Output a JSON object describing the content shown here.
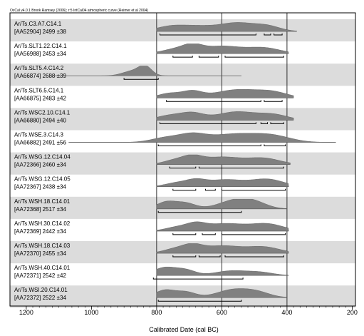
{
  "chart_data": {
    "type": "area",
    "header": "OxCal v4.0.1 Bronk Ramsey (2006); r:5 IntCal04 atmospheric curve (Reimer et al 2004)",
    "xlabel": "Calibrated Date (cal BC)",
    "xlim": [
      1250,
      190
    ],
    "x_ticks": [
      1200,
      1000,
      800,
      600,
      400,
      200
    ],
    "gridlines": [
      800,
      600,
      400
    ],
    "samples": [
      {
        "name": "Ar/Ts.C3.A7.C14.1",
        "lab": "[AA52904] 2499 ±38",
        "peaks": [
          [
            760,
            0.45,
            45
          ],
          [
            670,
            0.55,
            60
          ],
          [
            550,
            0.85,
            50
          ],
          [
            460,
            0.55,
            40
          ]
        ],
        "tails": [
          650,
          370
        ],
        "ranges": [
          [
            790,
            495
          ],
          [
            470,
            450
          ],
          [
            440,
            415
          ]
        ]
      },
      {
        "name": "Ar/Ts.SLT1.22.C14.1",
        "lab": "[AA56988] 2453 ±34",
        "peaks": [
          [
            745,
            0.45,
            40
          ],
          [
            690,
            0.7,
            30
          ],
          [
            600,
            0.8,
            60
          ],
          [
            470,
            0.6,
            50
          ]
        ],
        "tails": [
          650,
          395
        ],
        "ranges": [
          [
            750,
            690
          ],
          [
            670,
            610
          ],
          [
            590,
            410
          ]
        ]
      },
      {
        "name": "Ar/Ts.SLT5.4.C14.2",
        "lab": "[AA66874] 2688 ±39",
        "peaks": [
          [
            875,
            0.5,
            30
          ],
          [
            835,
            0.95,
            20
          ]
        ],
        "tails": [
          980,
          540
        ],
        "ranges": [
          [
            900,
            795
          ]
        ]
      },
      {
        "name": "Ar/Ts.SLT6.5.C14.1",
        "lab": "[AA66875] 2483 ±42",
        "peaks": [
          [
            760,
            0.5,
            35
          ],
          [
            690,
            0.65,
            30
          ],
          [
            550,
            0.9,
            70
          ],
          [
            440,
            0.5,
            45
          ]
        ],
        "tails": [
          650,
          380
        ],
        "ranges": [
          [
            770,
            480
          ],
          [
            470,
            415
          ]
        ]
      },
      {
        "name": "Ar/Ts.WSC2.10.C14.1",
        "lab": "[AA66880] 2494 ±40",
        "peaks": [
          [
            760,
            0.5,
            40
          ],
          [
            690,
            0.7,
            35
          ],
          [
            555,
            0.9,
            60
          ],
          [
            440,
            0.55,
            45
          ]
        ],
        "tails": [
          650,
          380
        ],
        "ranges": [
          [
            790,
            495
          ],
          [
            480,
            460
          ],
          [
            450,
            410
          ]
        ]
      },
      {
        "name": "Ar/Ts.WSE.3.C14.3",
        "lab": "[AA66882] 2491 ±56",
        "peaks": [
          [
            770,
            0.5,
            45
          ],
          [
            690,
            0.7,
            40
          ],
          [
            560,
            0.9,
            80
          ],
          [
            440,
            0.55,
            55
          ]
        ],
        "tails": [
          920,
          250
        ],
        "ranges": [
          [
            795,
            480
          ],
          [
            470,
            405
          ]
        ]
      },
      {
        "name": "Ar/Ts.WSG.12.C14.04",
        "lab": "[AA72366] 2460 ±34",
        "peaks": [
          [
            745,
            0.45,
            35
          ],
          [
            690,
            0.7,
            30
          ],
          [
            600,
            0.8,
            60
          ],
          [
            470,
            0.65,
            50
          ]
        ],
        "tails": [
          650,
          390
        ],
        "ranges": [
          [
            760,
            680
          ],
          [
            670,
            410
          ]
        ]
      },
      {
        "name": "Ar/Ts.WSG.12.C14.05",
        "lab": "[AA72367] 2438 ±34",
        "peaks": [
          [
            740,
            0.4,
            35
          ],
          [
            680,
            0.6,
            30
          ],
          [
            590,
            0.75,
            55
          ],
          [
            460,
            0.8,
            50
          ]
        ],
        "tails": [
          650,
          395
        ],
        "ranges": [
          [
            750,
            680
          ],
          [
            650,
            620
          ],
          [
            600,
            405
          ]
        ]
      },
      {
        "name": "Ar/Ts.WSH.18.C14.01",
        "lab": "[AA72368] 2517 ±34",
        "peaks": [
          [
            770,
            0.75,
            30
          ],
          [
            710,
            0.6,
            30
          ],
          [
            560,
            0.9,
            50
          ],
          [
            500,
            0.55,
            40
          ]
        ],
        "tails": [
          650,
          400
        ],
        "ranges": [
          [
            795,
            540
          ]
        ]
      },
      {
        "name": "Ar/Ts.WSH.30.C14.02",
        "lab": "[AA72369] 2442 ±34",
        "peaks": [
          [
            740,
            0.4,
            35
          ],
          [
            680,
            0.65,
            30
          ],
          [
            590,
            0.8,
            60
          ],
          [
            460,
            0.75,
            50
          ]
        ],
        "tails": [
          650,
          395
        ],
        "ranges": [
          [
            750,
            680
          ],
          [
            660,
            620
          ],
          [
            600,
            405
          ]
        ]
      },
      {
        "name": "Ar/Ts.WSH.18.C14.03",
        "lab": "[AA72370] 2455 ±34",
        "peaks": [
          [
            745,
            0.45,
            35
          ],
          [
            690,
            0.7,
            30
          ],
          [
            600,
            0.8,
            60
          ],
          [
            470,
            0.65,
            50
          ]
        ],
        "tails": [
          650,
          395
        ],
        "ranges": [
          [
            750,
            680
          ],
          [
            670,
            605
          ],
          [
            590,
            410
          ]
        ]
      },
      {
        "name": "Ar/Ts.WSH.40.C14.01",
        "lab": "[AA72371] 2542 ±42",
        "peaks": [
          [
            775,
            0.85,
            35
          ],
          [
            710,
            0.55,
            30
          ],
          [
            570,
            0.5,
            50
          ],
          [
            480,
            0.3,
            40
          ]
        ],
        "tails": [
          650,
          395
        ],
        "ranges": [
          [
            810,
            535
          ]
        ]
      },
      {
        "name": "Ar/Ts.WSI.20.C14.01",
        "lab": "[AA72372] 2522 ±34",
        "peaks": [
          [
            775,
            0.8,
            30
          ],
          [
            710,
            0.6,
            30
          ],
          [
            565,
            0.85,
            50
          ],
          [
            490,
            0.5,
            40
          ]
        ],
        "tails": [
          650,
          400
        ],
        "ranges": [
          [
            795,
            540
          ]
        ]
      }
    ]
  }
}
